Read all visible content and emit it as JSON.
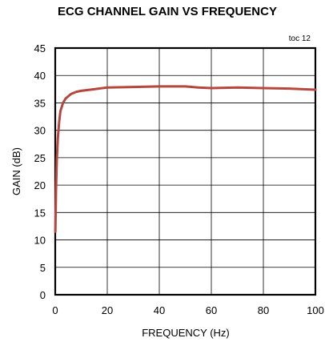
{
  "chart_data": {
    "type": "line",
    "title": "ECG CHANNEL GAIN VS FREQUENCY",
    "annotation": "toc 12",
    "xlabel": "FREQUENCY (Hz)",
    "ylabel": "GAIN (dB)",
    "xlim": [
      0,
      100
    ],
    "ylim": [
      0,
      45
    ],
    "xticks": [
      0,
      20,
      40,
      60,
      80,
      100
    ],
    "yticks": [
      0,
      5,
      10,
      15,
      20,
      25,
      30,
      35,
      40,
      45
    ],
    "xtick_labels": [
      "0",
      "20",
      "40",
      "60",
      "80",
      "100"
    ],
    "ytick_labels": [
      "0",
      "5",
      "10",
      "15",
      "20",
      "25",
      "30",
      "35",
      "40",
      "45"
    ],
    "grid": true,
    "line_color": "#b5473f",
    "series": [
      {
        "x": [
          0.05,
          0.3,
          0.6,
          1,
          1.5,
          2,
          3,
          4,
          5,
          6,
          8,
          10,
          15,
          20,
          30,
          40,
          50,
          55,
          60,
          70,
          80,
          90,
          100
        ],
        "y": [
          11.5,
          19,
          24.5,
          28.5,
          31.5,
          33.5,
          35,
          35.8,
          36.2,
          36.6,
          37,
          37.2,
          37.5,
          37.8,
          37.9,
          38,
          38,
          37.8,
          37.7,
          37.8,
          37.7,
          37.6,
          37.4
        ]
      }
    ]
  }
}
